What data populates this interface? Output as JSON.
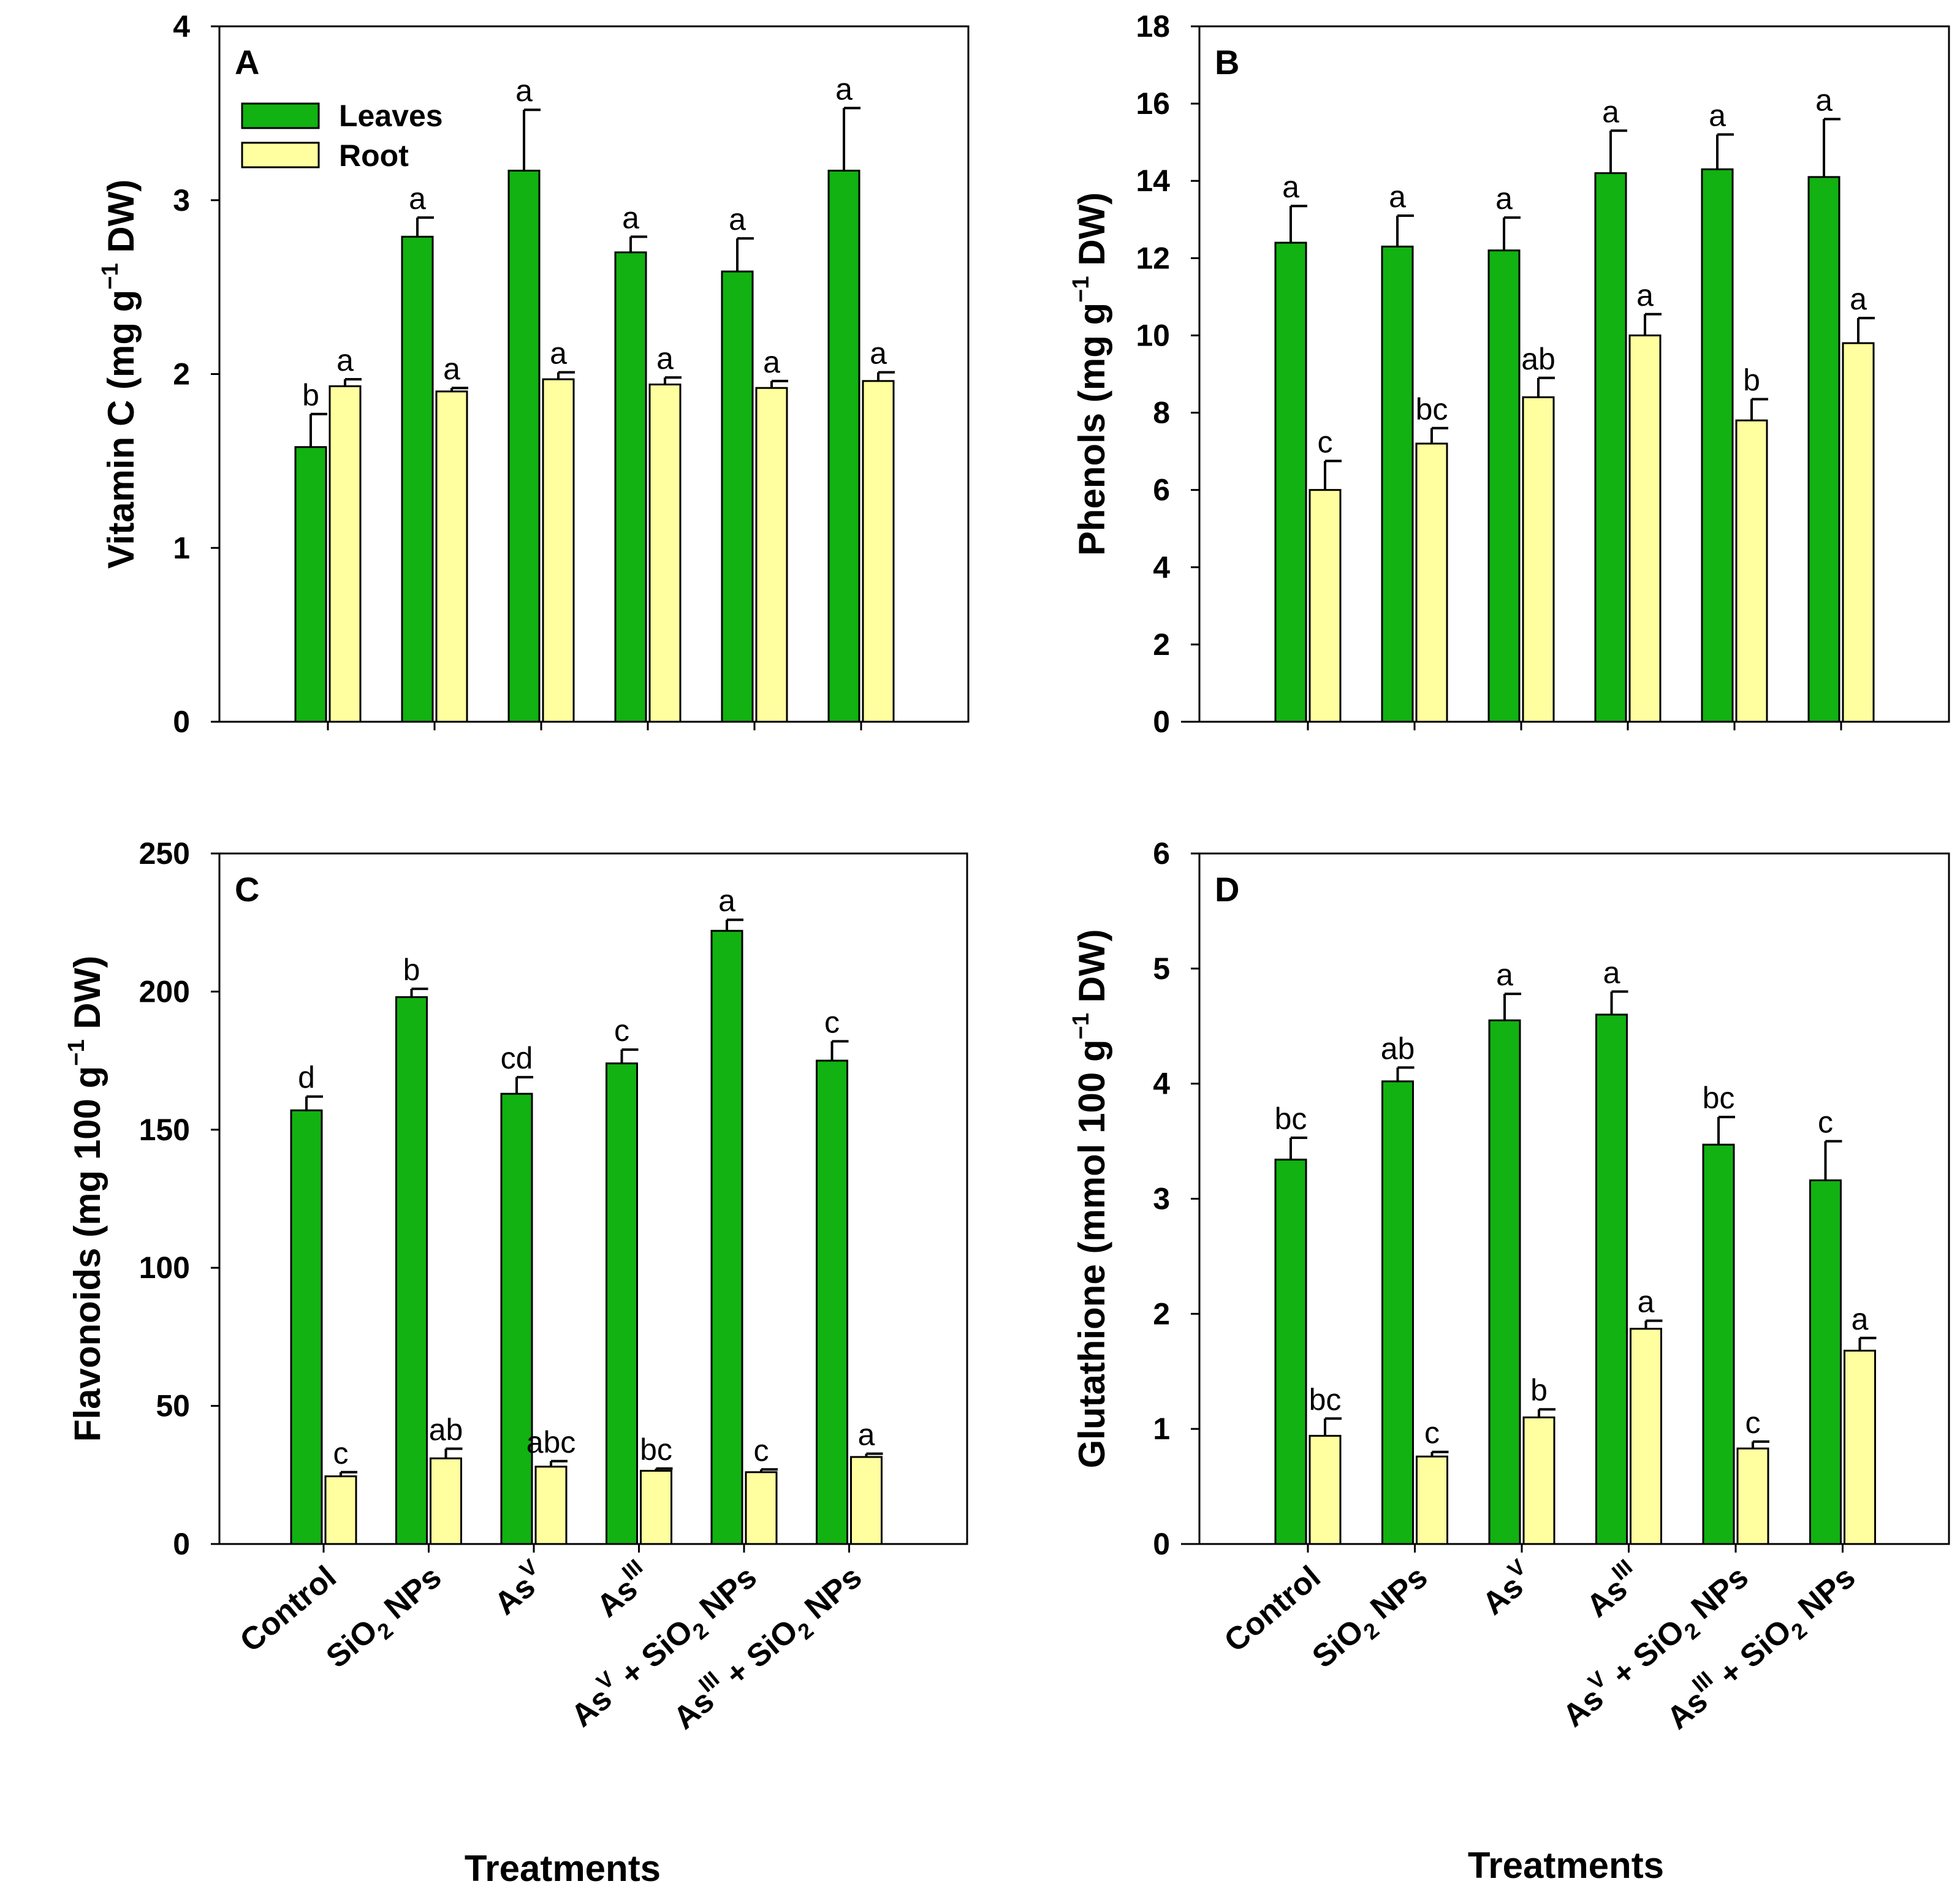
{
  "colors": {
    "leaves": "#11B211",
    "root": "#FFFFA0",
    "edge": "#000000"
  },
  "legend": {
    "leaves_label": "Leaves",
    "root_label": "Root"
  },
  "x_axis_title": "Treatments",
  "chart_data": [
    {
      "id": "A",
      "panel_label": "A",
      "type": "bar",
      "title": "",
      "ylabel_parts": [
        "Vitamin C (mg g",
        "−1",
        " DW)"
      ],
      "ylim": [
        0,
        4
      ],
      "yticks": [
        0,
        1,
        2,
        3,
        4
      ],
      "categories": [
        "Control",
        "SiO2 NPs",
        "AsV",
        "AsIII",
        "AsV + SiO2 NPs",
        "AsIII + SiO2 NPs"
      ],
      "show_category_labels": false,
      "legend": true,
      "series": [
        {
          "name": "Leaves",
          "values": [
            1.58,
            2.79,
            3.17,
            2.7,
            2.59,
            3.17
          ],
          "errors": [
            0.19,
            0.11,
            0.35,
            0.09,
            0.19,
            0.36
          ],
          "letters": [
            "b",
            "a",
            "a",
            "a",
            "a",
            "a"
          ]
        },
        {
          "name": "Root",
          "values": [
            1.93,
            1.9,
            1.97,
            1.94,
            1.92,
            1.96
          ],
          "errors": [
            0.04,
            0.02,
            0.04,
            0.04,
            0.04,
            0.05
          ],
          "letters": [
            "a",
            "a",
            "a",
            "a",
            "a",
            "a"
          ]
        }
      ]
    },
    {
      "id": "B",
      "panel_label": "B",
      "type": "bar",
      "title": "",
      "ylabel_parts": [
        "Phenols (mg g",
        "−1",
        " DW)"
      ],
      "ylim": [
        0,
        18
      ],
      "yticks": [
        0,
        2,
        4,
        6,
        8,
        10,
        12,
        14,
        16,
        18
      ],
      "categories": [
        "Control",
        "SiO2 NPs",
        "AsV",
        "AsIII",
        "AsV + SiO2 NPs",
        "AsIII + SiO2 NPs"
      ],
      "show_category_labels": false,
      "legend": false,
      "series": [
        {
          "name": "Leaves",
          "values": [
            12.4,
            12.3,
            12.2,
            14.2,
            14.3,
            14.1
          ],
          "errors": [
            0.95,
            0.8,
            0.85,
            1.1,
            0.9,
            1.5
          ],
          "letters": [
            "a",
            "a",
            "a",
            "a",
            "a",
            "a"
          ]
        },
        {
          "name": "Root",
          "values": [
            6.0,
            7.2,
            8.4,
            10.0,
            7.8,
            9.8
          ],
          "errors": [
            0.75,
            0.4,
            0.5,
            0.55,
            0.55,
            0.65
          ],
          "letters": [
            "c",
            "bc",
            "ab",
            "a",
            "b",
            "a"
          ]
        }
      ]
    },
    {
      "id": "C",
      "panel_label": "C",
      "type": "bar",
      "title": "",
      "ylabel_parts": [
        "Flavonoids (mg 100 g",
        "−1",
        " DW)"
      ],
      "ylim": [
        0,
        250
      ],
      "yticks": [
        0,
        50,
        100,
        150,
        200,
        250
      ],
      "categories": [
        "Control",
        "SiO2 NPs",
        "AsV",
        "AsIII",
        "AsV + SiO2 NPs",
        "AsIII + SiO2 NPs"
      ],
      "show_category_labels": true,
      "legend": false,
      "series": [
        {
          "name": "Leaves",
          "values": [
            157,
            198,
            163,
            174,
            222,
            175
          ],
          "errors": [
            5,
            3,
            6,
            5,
            4,
            7
          ],
          "letters": [
            "d",
            "b",
            "cd",
            "c",
            "a",
            "c"
          ]
        },
        {
          "name": "Root",
          "values": [
            24.5,
            31,
            28,
            26.5,
            26,
            31.5
          ],
          "errors": [
            1.5,
            3.5,
            2,
            0.8,
            1,
            1.2
          ],
          "letters": [
            "c",
            "ab",
            "abc",
            "bc",
            "c",
            "a"
          ]
        }
      ]
    },
    {
      "id": "D",
      "panel_label": "D",
      "type": "bar",
      "title": "",
      "ylabel_parts": [
        "Glutathione (mmol 100 g",
        "−1",
        " DW)"
      ],
      "ylim": [
        0,
        6
      ],
      "yticks": [
        0,
        1,
        2,
        3,
        4,
        5,
        6
      ],
      "categories": [
        "Control",
        "SiO2 NPs",
        "AsV",
        "AsIII",
        "AsV + SiO2 NPs",
        "AsIII + SiO2 NPs"
      ],
      "show_category_labels": true,
      "legend": false,
      "series": [
        {
          "name": "Leaves",
          "values": [
            3.34,
            4.02,
            4.55,
            4.6,
            3.47,
            3.16
          ],
          "errors": [
            0.19,
            0.12,
            0.23,
            0.2,
            0.24,
            0.34
          ],
          "letters": [
            "bc",
            "ab",
            "a",
            "a",
            "bc",
            "c"
          ]
        },
        {
          "name": "Root",
          "values": [
            0.94,
            0.76,
            1.1,
            1.87,
            0.83,
            1.68
          ],
          "errors": [
            0.15,
            0.04,
            0.07,
            0.07,
            0.06,
            0.11
          ],
          "letters": [
            "bc",
            "c",
            "b",
            "a",
            "c",
            "a"
          ]
        }
      ]
    }
  ]
}
